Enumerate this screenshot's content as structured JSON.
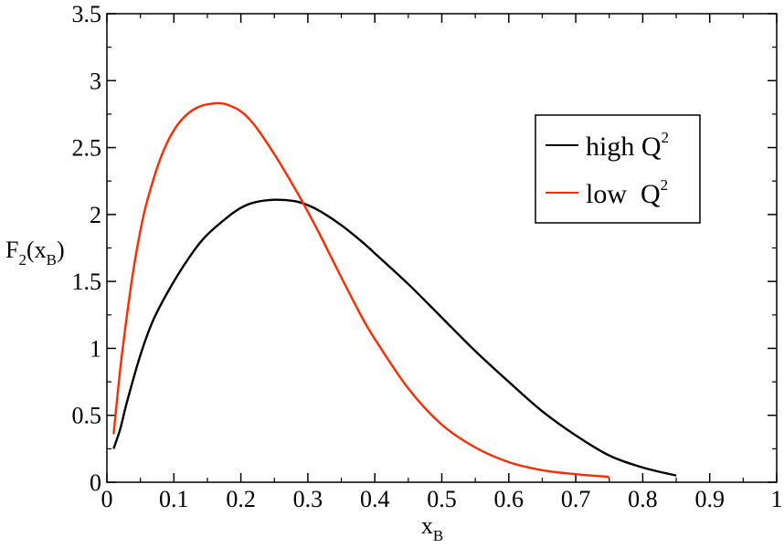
{
  "chart_data": {
    "type": "line",
    "xlabel": {
      "base": "x",
      "sub": "B"
    },
    "ylabel": {
      "base": "F",
      "sub": "2",
      "open": "(x",
      "sub2": "B",
      "close": ")"
    },
    "xlim": [
      0,
      1
    ],
    "ylim": [
      0,
      3.5
    ],
    "xticks": [
      "0",
      "0.1",
      "0.2",
      "0.3",
      "0.4",
      "0.5",
      "0.6",
      "0.7",
      "0.8",
      "0.9",
      "1"
    ],
    "yticks": [
      "0",
      "0.5",
      "1",
      "1.5",
      "2",
      "2.5",
      "3",
      "3.5"
    ],
    "grid": false,
    "legend_position": "top-right",
    "series": [
      {
        "name": {
          "base": "high Q",
          "sup": "2"
        },
        "color": "#000000",
        "x": [
          0.01,
          0.02,
          0.03,
          0.05,
          0.07,
          0.1,
          0.13,
          0.15,
          0.18,
          0.2,
          0.22,
          0.25,
          0.28,
          0.3,
          0.32,
          0.35,
          0.38,
          0.4,
          0.45,
          0.5,
          0.55,
          0.6,
          0.65,
          0.7,
          0.75,
          0.8,
          0.85
        ],
        "y": [
          0.25,
          0.4,
          0.6,
          0.95,
          1.22,
          1.5,
          1.73,
          1.85,
          1.98,
          2.05,
          2.09,
          2.11,
          2.1,
          2.07,
          2.02,
          1.92,
          1.8,
          1.71,
          1.48,
          1.23,
          0.98,
          0.75,
          0.53,
          0.35,
          0.2,
          0.11,
          0.05
        ]
      },
      {
        "name": {
          "base": "low  Q",
          "sup": "2"
        },
        "color": "#ff2a00",
        "x": [
          0.01,
          0.02,
          0.03,
          0.04,
          0.05,
          0.06,
          0.08,
          0.1,
          0.12,
          0.14,
          0.16,
          0.17,
          0.18,
          0.2,
          0.22,
          0.25,
          0.28,
          0.3,
          0.32,
          0.35,
          0.38,
          0.4,
          0.45,
          0.5,
          0.55,
          0.6,
          0.65,
          0.7,
          0.75
        ],
        "y": [
          0.36,
          0.85,
          1.25,
          1.6,
          1.88,
          2.1,
          2.42,
          2.63,
          2.75,
          2.81,
          2.83,
          2.83,
          2.82,
          2.77,
          2.67,
          2.45,
          2.2,
          2.02,
          1.83,
          1.53,
          1.24,
          1.07,
          0.7,
          0.43,
          0.26,
          0.15,
          0.09,
          0.06,
          0.04
        ]
      }
    ]
  }
}
